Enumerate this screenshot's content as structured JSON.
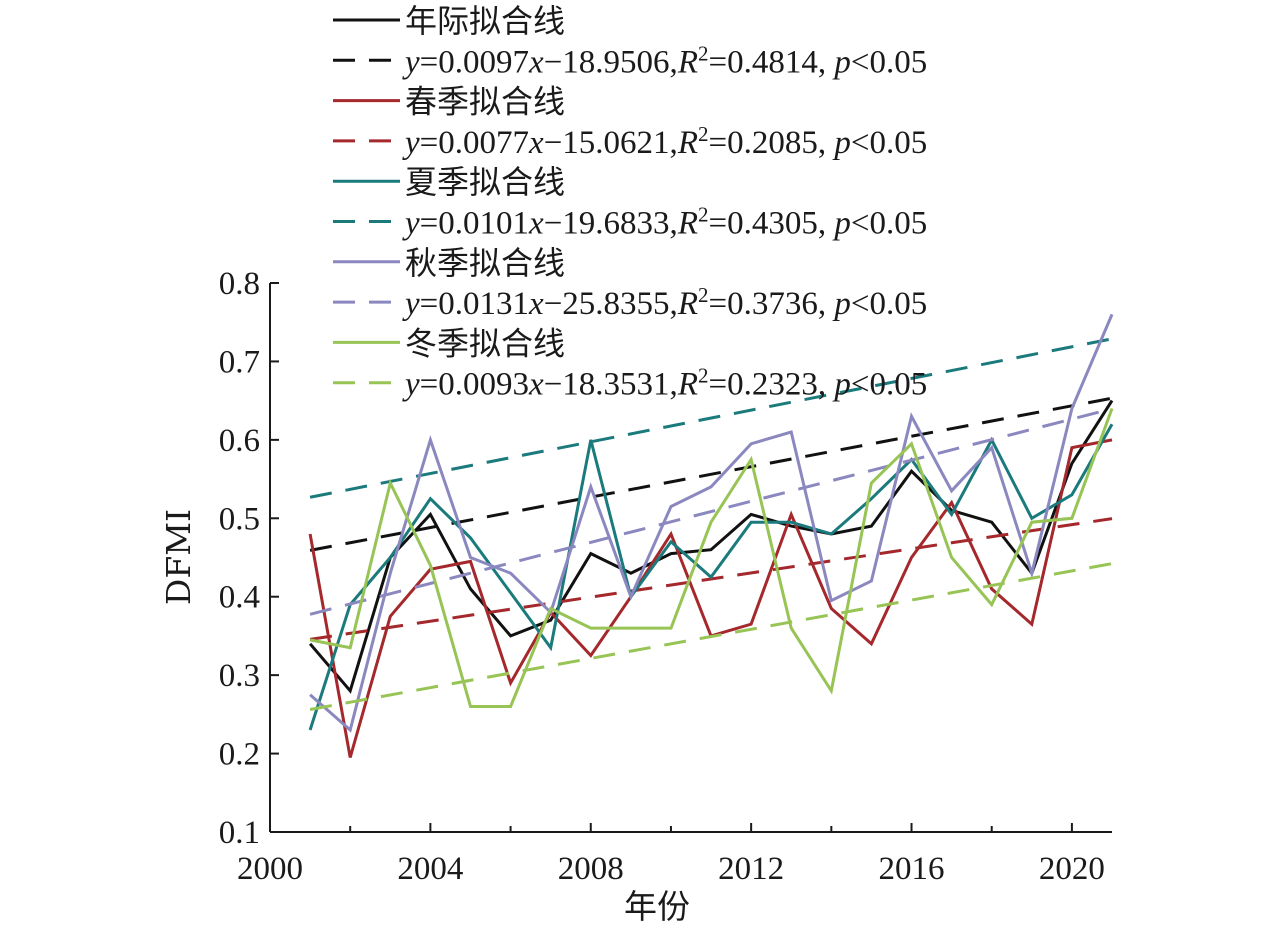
{
  "chart_data": {
    "type": "line",
    "xlabel": "年份",
    "ylabel": "DFMI",
    "xlim": [
      2000,
      2021
    ],
    "ylim": [
      0.1,
      0.8
    ],
    "xticks": [
      2000,
      2004,
      2008,
      2012,
      2016,
      2020
    ],
    "yticks": [
      0.1,
      0.2,
      0.3,
      0.4,
      0.5,
      0.6,
      0.7,
      0.8
    ],
    "grid": false,
    "legend_position": "top",
    "x": [
      2001,
      2002,
      2003,
      2004,
      2005,
      2006,
      2007,
      2008,
      2009,
      2010,
      2011,
      2012,
      2013,
      2014,
      2015,
      2016,
      2017,
      2018,
      2019,
      2020,
      2021
    ],
    "series": [
      {
        "name": "年际拟合线",
        "color": "#111111",
        "values": [
          0.34,
          0.28,
          0.45,
          0.505,
          0.41,
          0.35,
          0.37,
          0.455,
          0.43,
          0.455,
          0.46,
          0.505,
          0.49,
          0.48,
          0.49,
          0.56,
          0.51,
          0.495,
          0.43,
          0.57,
          0.65
        ],
        "fit": {
          "label": "y=0.0097x−18.9506, R²=0.4814, p<0.05",
          "y_prefix": "y",
          "equation_rest": "=0.0097",
          "x_var": "x",
          "intercept": "−18.9506,",
          "r_var": "R",
          "r_sup": "2",
          "r_value": "=0.4814,",
          "p_var": "p",
          "p_value": "<0.05",
          "slope": 0.0097,
          "intercept_value": -18.9506
        }
      },
      {
        "name": "春季拟合线",
        "color": "#a4282c",
        "values": [
          0.48,
          0.195,
          0.375,
          0.435,
          0.445,
          0.29,
          0.38,
          0.325,
          0.4,
          0.48,
          0.35,
          0.365,
          0.505,
          0.385,
          0.34,
          0.45,
          0.52,
          0.41,
          0.365,
          0.59,
          0.6
        ],
        "fit": {
          "label": "y=0.0077x−15.0621, R²=0.2085, p<0.05",
          "y_prefix": "y",
          "equation_rest": "=0.0077",
          "x_var": "x",
          "intercept": "−15.0621,",
          "r_var": "R",
          "r_sup": "2",
          "r_value": "=0.2085,",
          "p_var": "p",
          "p_value": "<0.05",
          "slope": 0.0077,
          "intercept_value": -15.0621
        }
      },
      {
        "name": "夏季拟合线",
        "color": "#1b7a7c",
        "values": [
          0.23,
          0.39,
          0.45,
          0.525,
          0.475,
          0.405,
          0.335,
          0.6,
          0.4,
          0.47,
          0.425,
          0.495,
          0.495,
          0.48,
          0.525,
          0.575,
          0.505,
          0.6,
          0.5,
          0.53,
          0.62
        ],
        "fit": {
          "label": "y=0.0101x−19.6833, R²=0.4305, p<0.05",
          "y_prefix": "y",
          "equation_rest": "=0.0101",
          "x_var": "x",
          "intercept": "−19.6833,",
          "r_var": "R",
          "r_sup": "2",
          "r_value": "=0.4305,",
          "p_var": "p",
          "p_value": "<0.05",
          "slope": 0.0101,
          "intercept_value": -19.6833
        }
      },
      {
        "name": "秋季拟合线",
        "color": "#8b88c0",
        "values": [
          0.275,
          0.23,
          0.43,
          0.6,
          0.45,
          0.43,
          0.38,
          0.54,
          0.4,
          0.515,
          0.54,
          0.595,
          0.61,
          0.395,
          0.42,
          0.63,
          0.535,
          0.59,
          0.43,
          0.64,
          0.76
        ],
        "fit": {
          "label": "y=0.0131x−25.8355, R²=0.3736, p<0.05",
          "y_prefix": "y",
          "equation_rest": "=0.0131",
          "x_var": "x",
          "intercept": "−25.8355,",
          "r_var": "R",
          "r_sup": "2",
          "r_value": "=0.3736,",
          "p_var": "p",
          "p_value": "<0.05",
          "slope": 0.0131,
          "intercept_value": -25.8355
        }
      },
      {
        "name": "冬季拟合线",
        "color": "#97c455",
        "values": [
          0.345,
          0.335,
          0.545,
          0.44,
          0.26,
          0.26,
          0.385,
          0.36,
          0.36,
          0.36,
          0.495,
          0.575,
          0.36,
          0.28,
          0.545,
          0.595,
          0.45,
          0.39,
          0.495,
          0.5,
          0.64
        ],
        "fit": {
          "label": "y=0.0093x−18.3531, R²=0.2323, p<0.05",
          "y_prefix": "y",
          "equation_rest": "=0.0093",
          "x_var": "x",
          "intercept": "−18.3531,",
          "r_var": "R",
          "r_sup": "2",
          "r_value": "=0.2323,",
          "p_var": "p",
          "p_value": "<0.05",
          "slope": 0.0093,
          "intercept_value": -18.3531
        }
      }
    ]
  }
}
